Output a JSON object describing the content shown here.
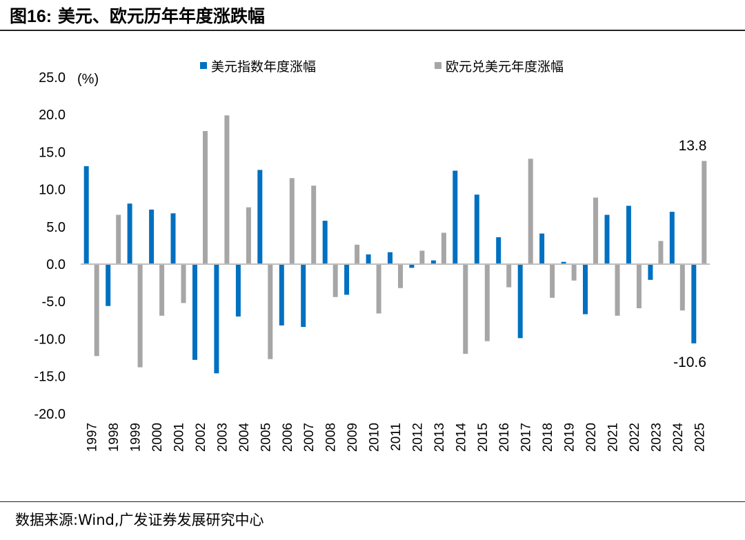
{
  "header": {
    "figure_num": "图16:",
    "title": "美元、欧元历年年度涨跌幅"
  },
  "footer": {
    "source": "数据来源:Wind,广发证券发展研究中心"
  },
  "colors": {
    "usd": "#0070C0",
    "eur": "#A6A6A6"
  },
  "chart_data": {
    "type": "bar",
    "unit_label": "(%)",
    "categories": [
      "1997",
      "1998",
      "1999",
      "2000",
      "2001",
      "2002",
      "2003",
      "2004",
      "2005",
      "2006",
      "2007",
      "2008",
      "2009",
      "2010",
      "2011",
      "2012",
      "2013",
      "2014",
      "2015",
      "2016",
      "2017",
      "2018",
      "2019",
      "2020",
      "2021",
      "2022",
      "2023",
      "2024",
      "2025"
    ],
    "series": [
      {
        "name": "美元指数年度涨幅",
        "color": "#0070C0",
        "values": [
          13.1,
          -5.6,
          8.1,
          7.3,
          6.8,
          -12.8,
          -14.6,
          -7.0,
          12.6,
          -8.2,
          -8.4,
          5.8,
          -4.1,
          1.3,
          1.6,
          -0.5,
          0.5,
          12.5,
          9.3,
          3.6,
          -9.9,
          4.1,
          0.3,
          -6.7,
          6.6,
          7.8,
          -2.1,
          7.0,
          -10.6
        ]
      },
      {
        "name": "欧元兑美元年度涨幅",
        "color": "#A6A6A6",
        "values": [
          -12.3,
          6.6,
          -13.8,
          -6.9,
          -5.2,
          17.8,
          19.9,
          7.6,
          -12.7,
          11.5,
          10.5,
          -4.4,
          2.6,
          -6.6,
          -3.2,
          1.8,
          4.2,
          -12.0,
          -10.3,
          -3.1,
          14.1,
          -4.5,
          -2.2,
          8.9,
          -6.9,
          -5.9,
          3.1,
          -6.2,
          13.8
        ]
      }
    ],
    "yticks": [
      "25.0",
      "20.0",
      "15.0",
      "10.0",
      "5.0",
      "0.0",
      "-5.0",
      "-10.0",
      "-15.0",
      "-20.0"
    ],
    "ylim": [
      -20,
      25
    ],
    "annotations": [
      "13.8",
      "-10.6"
    ],
    "legend_position": "top",
    "grid": false
  }
}
